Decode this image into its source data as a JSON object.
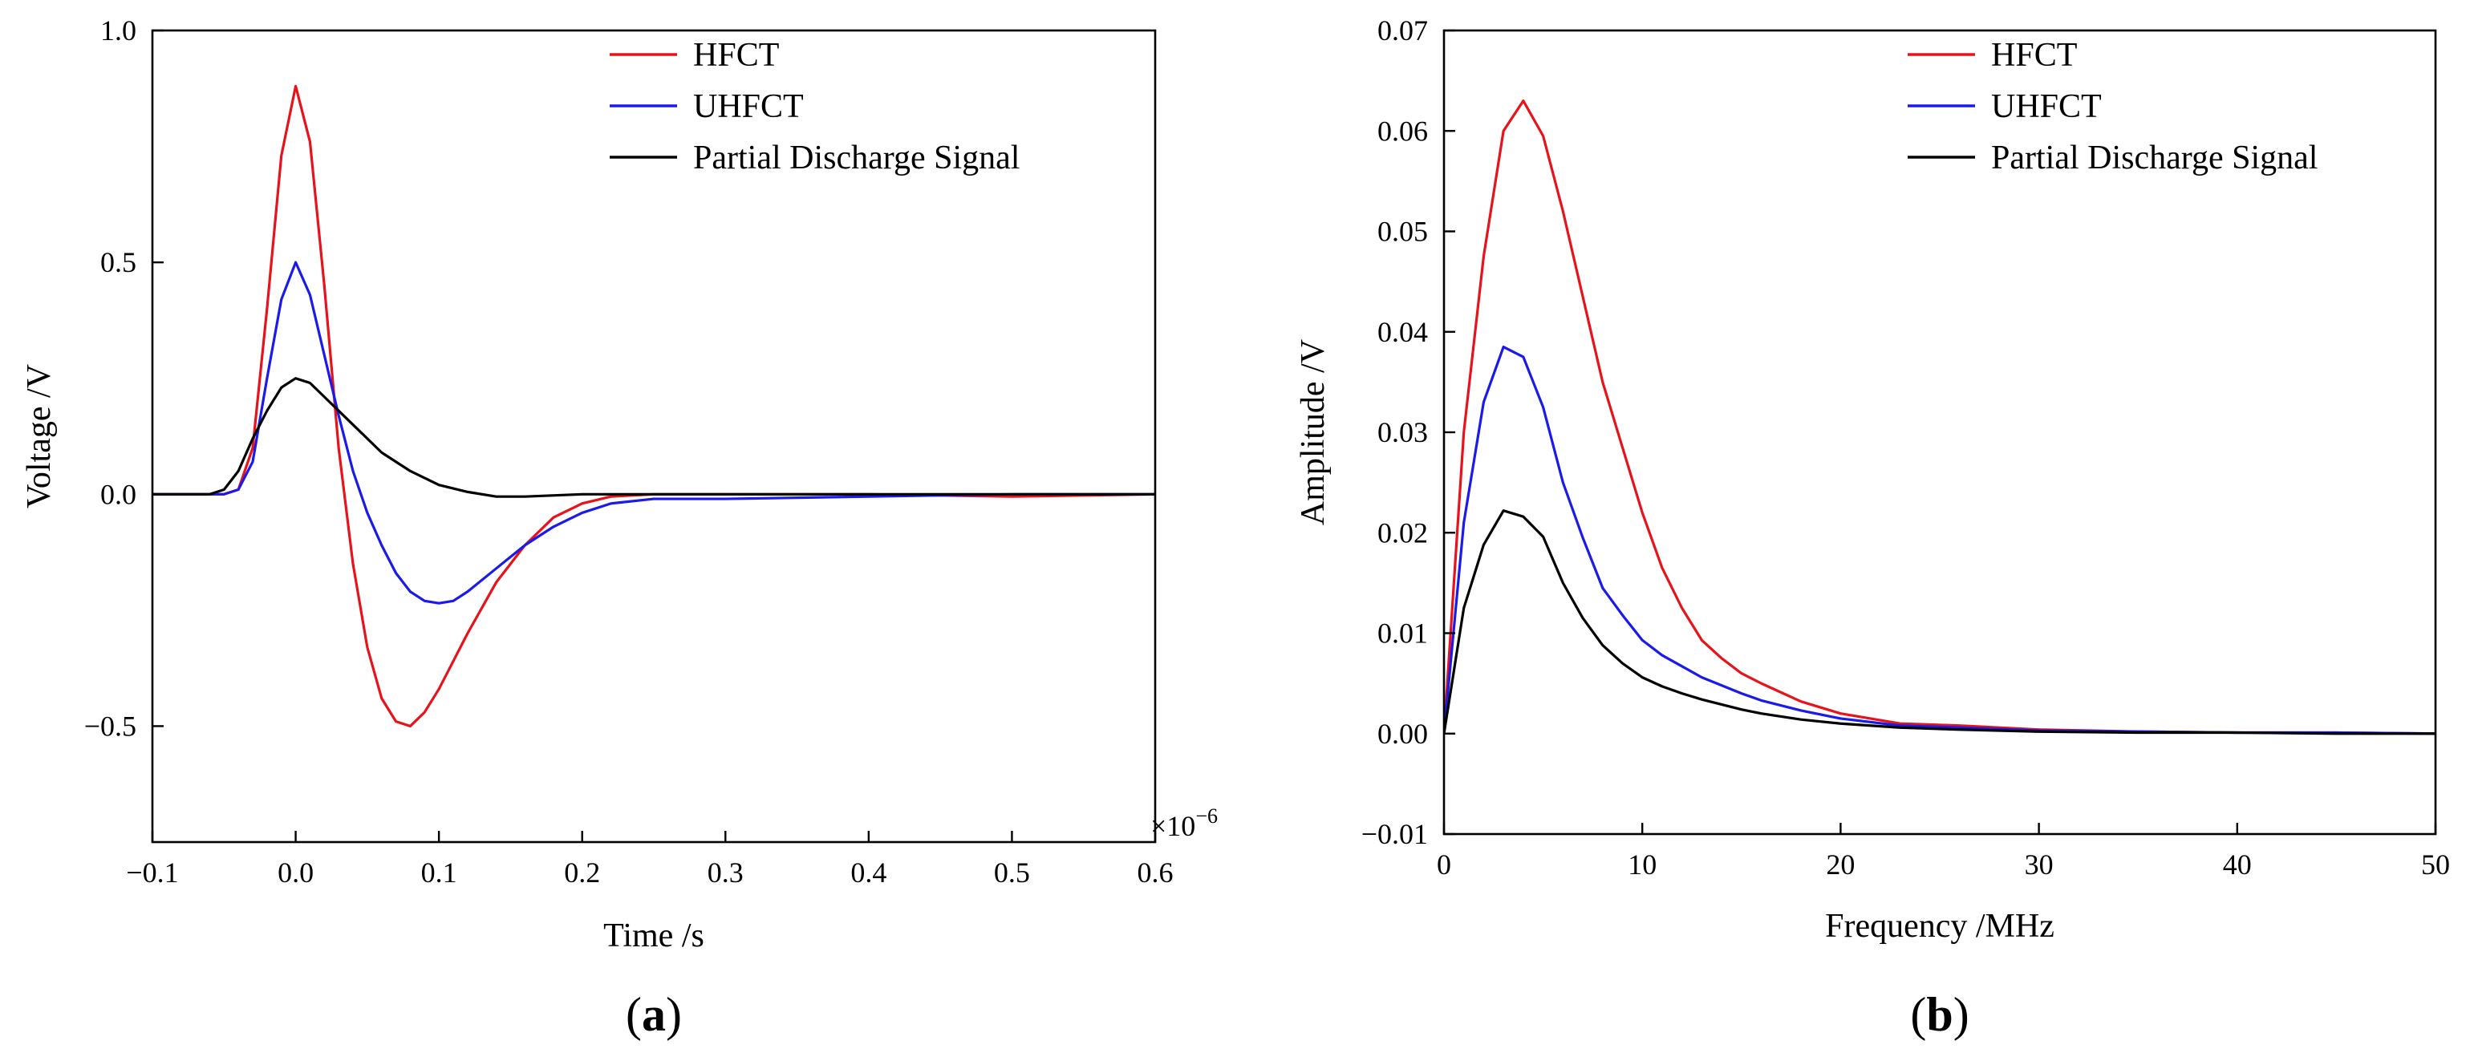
{
  "chart_data": [
    {
      "type": "line",
      "panel_label": "(a)",
      "panel_letter": "a",
      "xlabel": "Time /s",
      "ylabel": "Voltage /V",
      "x_multiplier": "×10",
      "x_multiplier_exp": "−6",
      "xlim": [
        -0.1,
        0.6
      ],
      "ylim": [
        -0.75,
        1.0
      ],
      "xticks": [
        -0.1,
        0.0,
        0.1,
        0.2,
        0.3,
        0.4,
        0.5,
        0.6
      ],
      "xtick_labels": [
        "−0.1",
        "0.0",
        "0.1",
        "0.2",
        "0.3",
        "0.4",
        "0.5",
        "0.6"
      ],
      "yticks": [
        -0.5,
        0.0,
        0.5,
        1.0
      ],
      "ytick_labels": [
        "−0.5",
        "0.0",
        "0.5",
        "1.0"
      ],
      "legend_position": "top-right",
      "grid": false,
      "series": [
        {
          "name": "HFCT",
          "color": "#e8121b",
          "x": [
            -0.1,
            -0.05,
            -0.04,
            -0.03,
            -0.02,
            -0.01,
            0.0,
            0.01,
            0.02,
            0.03,
            0.04,
            0.05,
            0.06,
            0.07,
            0.08,
            0.09,
            0.1,
            0.12,
            0.14,
            0.16,
            0.18,
            0.2,
            0.22,
            0.25,
            0.3,
            0.4,
            0.5,
            0.6
          ],
          "y": [
            0.0,
            0.0,
            0.01,
            0.1,
            0.4,
            0.73,
            0.88,
            0.76,
            0.45,
            0.1,
            -0.15,
            -0.33,
            -0.44,
            -0.49,
            -0.5,
            -0.47,
            -0.42,
            -0.3,
            -0.19,
            -0.11,
            -0.05,
            -0.02,
            -0.005,
            0.0,
            0.0,
            0.0,
            -0.005,
            0.0
          ]
        },
        {
          "name": "UHFCT",
          "color": "#1a1aeb",
          "x": [
            -0.1,
            -0.05,
            -0.04,
            -0.03,
            -0.02,
            -0.01,
            0.0,
            0.01,
            0.02,
            0.03,
            0.04,
            0.05,
            0.06,
            0.07,
            0.08,
            0.09,
            0.1,
            0.11,
            0.12,
            0.14,
            0.16,
            0.18,
            0.2,
            0.22,
            0.25,
            0.3,
            0.4,
            0.5,
            0.6
          ],
          "y": [
            0.0,
            0.0,
            0.01,
            0.07,
            0.25,
            0.42,
            0.5,
            0.43,
            0.3,
            0.17,
            0.05,
            -0.04,
            -0.11,
            -0.17,
            -0.21,
            -0.23,
            -0.235,
            -0.23,
            -0.21,
            -0.16,
            -0.11,
            -0.07,
            -0.04,
            -0.02,
            -0.01,
            -0.01,
            -0.005,
            0.0,
            0.0
          ]
        },
        {
          "name": "Partial Discharge Signal",
          "color": "#000000",
          "x": [
            -0.1,
            -0.06,
            -0.05,
            -0.04,
            -0.03,
            -0.02,
            -0.01,
            0.0,
            0.01,
            0.02,
            0.03,
            0.04,
            0.05,
            0.06,
            0.08,
            0.1,
            0.12,
            0.14,
            0.16,
            0.2,
            0.3,
            0.4,
            0.5,
            0.6
          ],
          "y": [
            0.0,
            0.0,
            0.01,
            0.05,
            0.12,
            0.18,
            0.23,
            0.25,
            0.24,
            0.21,
            0.18,
            0.15,
            0.12,
            0.09,
            0.05,
            0.02,
            0.005,
            -0.005,
            -0.005,
            0.0,
            0.0,
            0.0,
            0.0,
            0.0
          ]
        }
      ]
    },
    {
      "type": "line",
      "panel_label": "(b)",
      "panel_letter": "b",
      "xlabel": "Frequency /MHz",
      "ylabel": "Amplitude /V",
      "xlim": [
        0,
        50
      ],
      "ylim": [
        -0.01,
        0.07
      ],
      "xticks": [
        0,
        10,
        20,
        30,
        40,
        50
      ],
      "xtick_labels": [
        "0",
        "10",
        "20",
        "30",
        "40",
        "50"
      ],
      "yticks": [
        -0.01,
        0.0,
        0.01,
        0.02,
        0.03,
        0.04,
        0.05,
        0.06,
        0.07
      ],
      "ytick_labels": [
        "−0.01",
        "0.00",
        "0.01",
        "0.02",
        "0.03",
        "0.04",
        "0.05",
        "0.06",
        "0.07"
      ],
      "legend_position": "top-right",
      "grid": false,
      "series": [
        {
          "name": "HFCT",
          "color": "#e8121b",
          "x": [
            0,
            1,
            2,
            3,
            4,
            5,
            6,
            7,
            8,
            9,
            10,
            11,
            12,
            13,
            14,
            15,
            16,
            18,
            20,
            23,
            26,
            30,
            35,
            40,
            45,
            50
          ],
          "y": [
            0.0,
            0.03,
            0.0475,
            0.06,
            0.063,
            0.0595,
            0.052,
            0.0435,
            0.035,
            0.0285,
            0.022,
            0.0165,
            0.0125,
            0.0093,
            0.0075,
            0.006,
            0.005,
            0.0032,
            0.002,
            0.001,
            0.0008,
            0.0004,
            0.0002,
            0.0001,
            0.0001,
            0.0
          ]
        },
        {
          "name": "UHFCT",
          "color": "#1a1aeb",
          "x": [
            0,
            1,
            2,
            3,
            4,
            5,
            6,
            7,
            8,
            9,
            10,
            11,
            12,
            13,
            14,
            15,
            16,
            18,
            20,
            23,
            26,
            30,
            35,
            40,
            45,
            50
          ],
          "y": [
            0.0,
            0.021,
            0.033,
            0.0385,
            0.0375,
            0.0325,
            0.025,
            0.0195,
            0.0145,
            0.0118,
            0.0093,
            0.0078,
            0.0067,
            0.0056,
            0.0048,
            0.004,
            0.0033,
            0.0023,
            0.0015,
            0.0008,
            0.0006,
            0.0003,
            0.0002,
            0.0001,
            0.0001,
            0.0
          ]
        },
        {
          "name": "Partial Discharge Signal",
          "color": "#000000",
          "x": [
            0,
            1,
            2,
            3,
            4,
            5,
            6,
            7,
            8,
            9,
            10,
            11,
            12,
            13,
            14,
            15,
            16,
            18,
            20,
            23,
            26,
            30,
            35,
            40,
            45,
            50
          ],
          "y": [
            0.0,
            0.0125,
            0.0188,
            0.0222,
            0.0216,
            0.0196,
            0.015,
            0.0115,
            0.0088,
            0.007,
            0.0056,
            0.0047,
            0.004,
            0.0034,
            0.0029,
            0.0024,
            0.002,
            0.0014,
            0.001,
            0.0006,
            0.0004,
            0.0002,
            0.0001,
            0.0001,
            0.0,
            0.0
          ]
        }
      ]
    }
  ]
}
